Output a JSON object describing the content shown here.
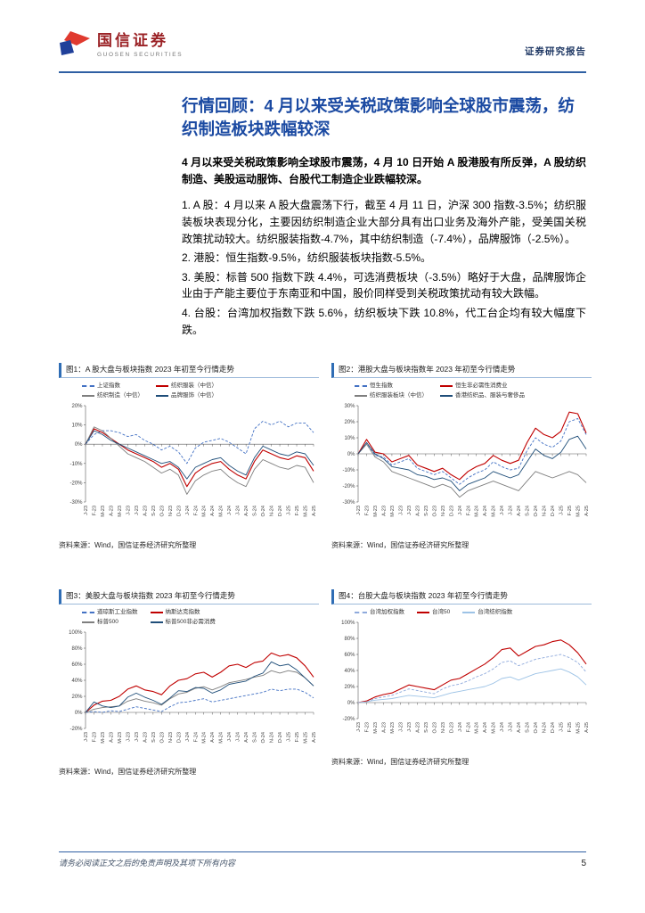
{
  "header": {
    "logo_cn": "国信证券",
    "logo_en": "GUOSEN SECURITIES",
    "report_type": "证券研究报告"
  },
  "title": "行情回顾：4 月以来受关税政策影响全球股市震荡，纺织制造板块跌幅较深",
  "summary": "4 月以来受关税政策影响全球股市震荡，4 月 10 日开始 A 股港股有所反弹，A 股纺织制造、美股运动服饰、台股代工制造企业跌幅较深。",
  "paragraphs": [
    "1. A 股：4 月以来 A 股大盘震荡下行，截至 4 月 11 日，沪深 300 指数-3.5%；纺织服装板块表现分化，主要因纺织制造企业大部分具有出口业务及海外产能，受美国关税政策扰动较大。纺织服装指数-4.7%，其中纺织制造（-7.4%），品牌服饰（-2.5%）。",
    "2. 港股：恒生指数-9.5%，纺织服装板块指数-5.5%。",
    "3. 美股：标普 500 指数下跌 4.4%，可选消费板块（-3.5%）略好于大盘，品牌服饰企业由于产能主要位于东南亚和中国，股价同样受到关税政策扰动有较大跌幅。",
    "4. 台股：台湾加权指数下跌 5.6%，纺织板块下跌 10.8%，代工台企均有较大幅度下跌。"
  ],
  "source_note": "资料来源：Wind，国信证券经济研究所整理",
  "footer": {
    "disclaimer": "请务必阅读正文之后的免责声明及其项下所有内容",
    "page_number": "5"
  },
  "colors": {
    "title_blue": "#1b4aa2",
    "rule_blue": "#2e5fa3",
    "figure_accent": "#2f6db5",
    "series_index_blue": "#4472C4",
    "series_red": "#C00000",
    "series_gray": "#7F7F7F",
    "series_navy": "#1F4E79",
    "series_light_blue": "#9DC3E6"
  },
  "chart_data": [
    {
      "type": "line",
      "title": "图1：A 股大盘与板块指数 2023 年初至今行情走势",
      "x": [
        "J-23",
        "F-23",
        "M-23",
        "A-23",
        "M-23",
        "J-23",
        "J-23",
        "A-23",
        "S-23",
        "O-23",
        "N-23",
        "D-23",
        "J-24",
        "F-24",
        "M-24",
        "A-24",
        "M-24",
        "J-24",
        "J-24",
        "A-24",
        "S-24",
        "O-24",
        "N-24",
        "D-24",
        "J-25",
        "F-25",
        "M-25",
        "A-25"
      ],
      "ylim": [
        -30,
        20
      ],
      "yticks": [
        20,
        10,
        0,
        -10,
        -20,
        -30
      ],
      "legend_position": "top",
      "grid": false,
      "series": [
        {
          "name": "上证指数",
          "color": "#4472C4",
          "dash": true,
          "values": [
            0,
            5,
            7,
            7,
            6,
            4,
            5,
            2,
            0,
            -3,
            -1,
            -4,
            -10,
            -2,
            1,
            2,
            3,
            1,
            -2,
            -5,
            8,
            12,
            10,
            12,
            9,
            11,
            11,
            6
          ]
        },
        {
          "name": "纺织服装（中信）",
          "color": "#C00000",
          "dash": false,
          "values": [
            0,
            8,
            6,
            3,
            0,
            -3,
            -5,
            -7,
            -9,
            -12,
            -10,
            -13,
            -22,
            -15,
            -12,
            -10,
            -9,
            -13,
            -16,
            -18,
            -9,
            -3,
            -5,
            -7,
            -8,
            -6,
            -7,
            -14
          ]
        },
        {
          "name": "纺织制造（中信）",
          "color": "#7F7F7F",
          "dash": false,
          "values": [
            0,
            9,
            7,
            3,
            -1,
            -5,
            -7,
            -9,
            -12,
            -15,
            -13,
            -16,
            -26,
            -19,
            -16,
            -14,
            -13,
            -17,
            -20,
            -22,
            -13,
            -8,
            -10,
            -12,
            -13,
            -11,
            -12,
            -20
          ]
        },
        {
          "name": "品牌服饰（中信）",
          "color": "#1F4E79",
          "dash": false,
          "values": [
            0,
            7,
            5,
            2,
            0,
            -2,
            -4,
            -6,
            -8,
            -10,
            -9,
            -12,
            -18,
            -12,
            -10,
            -8,
            -7,
            -11,
            -14,
            -16,
            -7,
            -1,
            -3,
            -5,
            -6,
            -4,
            -5,
            -11
          ]
        }
      ]
    },
    {
      "type": "line",
      "title": "图2：港股大盘与板块指数年 2023 年初至今行情走势",
      "x": [
        "J-23",
        "F-23",
        "M-23",
        "A-23",
        "M-23",
        "J-23",
        "J-23",
        "A-23",
        "S-23",
        "O-23",
        "N-23",
        "D-23",
        "J-24",
        "F-24",
        "M-24",
        "A-24",
        "M-24",
        "J-24",
        "J-24",
        "A-24",
        "S-24",
        "O-24",
        "N-24",
        "D-24",
        "J-25",
        "F-25",
        "M-25",
        "A-25"
      ],
      "ylim": [
        -30,
        30
      ],
      "yticks": [
        30,
        20,
        10,
        0,
        -10,
        -20,
        -30
      ],
      "legend_position": "top",
      "grid": false,
      "series": [
        {
          "name": "恒生指数",
          "color": "#4472C4",
          "dash": true,
          "values": [
            0,
            7,
            -1,
            -2,
            -7,
            -5,
            -3,
            -9,
            -11,
            -13,
            -11,
            -15,
            -19,
            -15,
            -12,
            -10,
            -5,
            -8,
            -10,
            -9,
            2,
            10,
            6,
            4,
            8,
            20,
            22,
            12
          ]
        },
        {
          "name": "恒生非必需性消费业",
          "color": "#C00000",
          "dash": false,
          "values": [
            0,
            9,
            1,
            0,
            -5,
            -3,
            -1,
            -7,
            -9,
            -11,
            -9,
            -13,
            -16,
            -11,
            -8,
            -6,
            -1,
            -4,
            -6,
            -4,
            7,
            16,
            12,
            10,
            14,
            26,
            25,
            13
          ]
        },
        {
          "name": "纺织服装板块（中信）",
          "color": "#7F7F7F",
          "dash": false,
          "values": [
            0,
            6,
            -2,
            -5,
            -11,
            -13,
            -15,
            -17,
            -19,
            -21,
            -19,
            -21,
            -27,
            -23,
            -21,
            -19,
            -17,
            -19,
            -21,
            -23,
            -17,
            -11,
            -13,
            -15,
            -13,
            -11,
            -13,
            -18
          ]
        },
        {
          "name": "香港纺织品、服装与奢侈品",
          "color": "#1F4E79",
          "dash": false,
          "values": [
            0,
            7,
            0,
            -3,
            -8,
            -9,
            -10,
            -13,
            -14,
            -16,
            -15,
            -17,
            -23,
            -19,
            -17,
            -15,
            -11,
            -13,
            -15,
            -13,
            -5,
            3,
            -1,
            -3,
            1,
            9,
            11,
            3
          ]
        }
      ]
    },
    {
      "type": "line",
      "title": "图3：美股大盘与板块指数 2023 年初至今行情走势",
      "x": [
        "J-23",
        "F-23",
        "M-23",
        "A-23",
        "M-23",
        "J-23",
        "J-23",
        "A-23",
        "S-23",
        "O-23",
        "N-23",
        "D-23",
        "J-24",
        "F-24",
        "M-24",
        "A-24",
        "M-24",
        "J-24",
        "J-24",
        "A-24",
        "S-24",
        "O-24",
        "N-24",
        "D-24",
        "J-25",
        "F-25",
        "M-25",
        "A-25"
      ],
      "ylim": [
        -20,
        100
      ],
      "yticks": [
        100,
        80,
        60,
        40,
        20,
        0,
        -20
      ],
      "legend_position": "top",
      "grid": false,
      "series": [
        {
          "name": "道琼斯工业指数",
          "color": "#4472C4",
          "dash": true,
          "values": [
            0,
            1,
            0,
            2,
            1,
            4,
            7,
            5,
            3,
            1,
            7,
            12,
            13,
            15,
            17,
            13,
            15,
            17,
            19,
            21,
            23,
            25,
            29,
            27,
            29,
            29,
            25,
            18
          ]
        },
        {
          "name": "纳斯达克指数",
          "color": "#C00000",
          "dash": false,
          "values": [
            0,
            9,
            14,
            15,
            20,
            29,
            33,
            28,
            26,
            22,
            33,
            40,
            42,
            48,
            50,
            44,
            50,
            58,
            60,
            56,
            62,
            64,
            74,
            70,
            72,
            68,
            58,
            44
          ]
        },
        {
          "name": "标普500",
          "color": "#7F7F7F",
          "dash": false,
          "values": [
            0,
            4,
            6,
            7,
            8,
            14,
            17,
            14,
            12,
            9,
            17,
            23,
            25,
            30,
            32,
            28,
            32,
            37,
            39,
            41,
            44,
            46,
            52,
            49,
            52,
            50,
            43,
            33
          ]
        },
        {
          "name": "标普500非必需消费",
          "color": "#1F4E79",
          "dash": false,
          "values": [
            0,
            13,
            8,
            6,
            8,
            19,
            24,
            19,
            15,
            10,
            18,
            27,
            26,
            31,
            30,
            24,
            28,
            35,
            37,
            39,
            45,
            49,
            63,
            58,
            60,
            53,
            43,
            33
          ]
        }
      ]
    },
    {
      "type": "line",
      "title": "图4：台股大盘与板块指数 2023 年初至今行情走势",
      "x": [
        "J-23",
        "F-23",
        "M-23",
        "A-23",
        "M-23",
        "J-23",
        "J-23",
        "A-23",
        "S-23",
        "O-23",
        "N-23",
        "D-23",
        "J-24",
        "F-24",
        "M-24",
        "A-24",
        "M-24",
        "J-24",
        "J-24",
        "A-24",
        "S-24",
        "O-24",
        "N-24",
        "D-24",
        "J-25",
        "F-25",
        "M-25",
        "A-25"
      ],
      "ylim": [
        -20,
        100
      ],
      "yticks": [
        100,
        80,
        60,
        40,
        20,
        0,
        -20
      ],
      "legend_position": "top",
      "grid": false,
      "series": [
        {
          "name": "台湾加权指数",
          "color": "#8FAADC",
          "dash": true,
          "values": [
            0,
            1,
            5,
            7,
            9,
            13,
            17,
            15,
            13,
            11,
            17,
            21,
            23,
            27,
            32,
            36,
            42,
            50,
            52,
            46,
            50,
            54,
            56,
            58,
            60,
            56,
            50,
            38
          ]
        },
        {
          "name": "台湾50",
          "color": "#C00000",
          "dash": false,
          "values": [
            0,
            2,
            7,
            10,
            12,
            17,
            22,
            20,
            18,
            16,
            22,
            28,
            30,
            36,
            42,
            48,
            56,
            66,
            68,
            58,
            64,
            70,
            72,
            76,
            78,
            72,
            62,
            48
          ]
        },
        {
          "name": "台湾纺织指数",
          "color": "#9DC3E6",
          "dash": false,
          "values": [
            0,
            1,
            3,
            4,
            5,
            7,
            9,
            8,
            7,
            6,
            9,
            12,
            14,
            16,
            18,
            20,
            24,
            30,
            32,
            28,
            32,
            36,
            38,
            40,
            42,
            38,
            32,
            22
          ]
        }
      ]
    }
  ]
}
